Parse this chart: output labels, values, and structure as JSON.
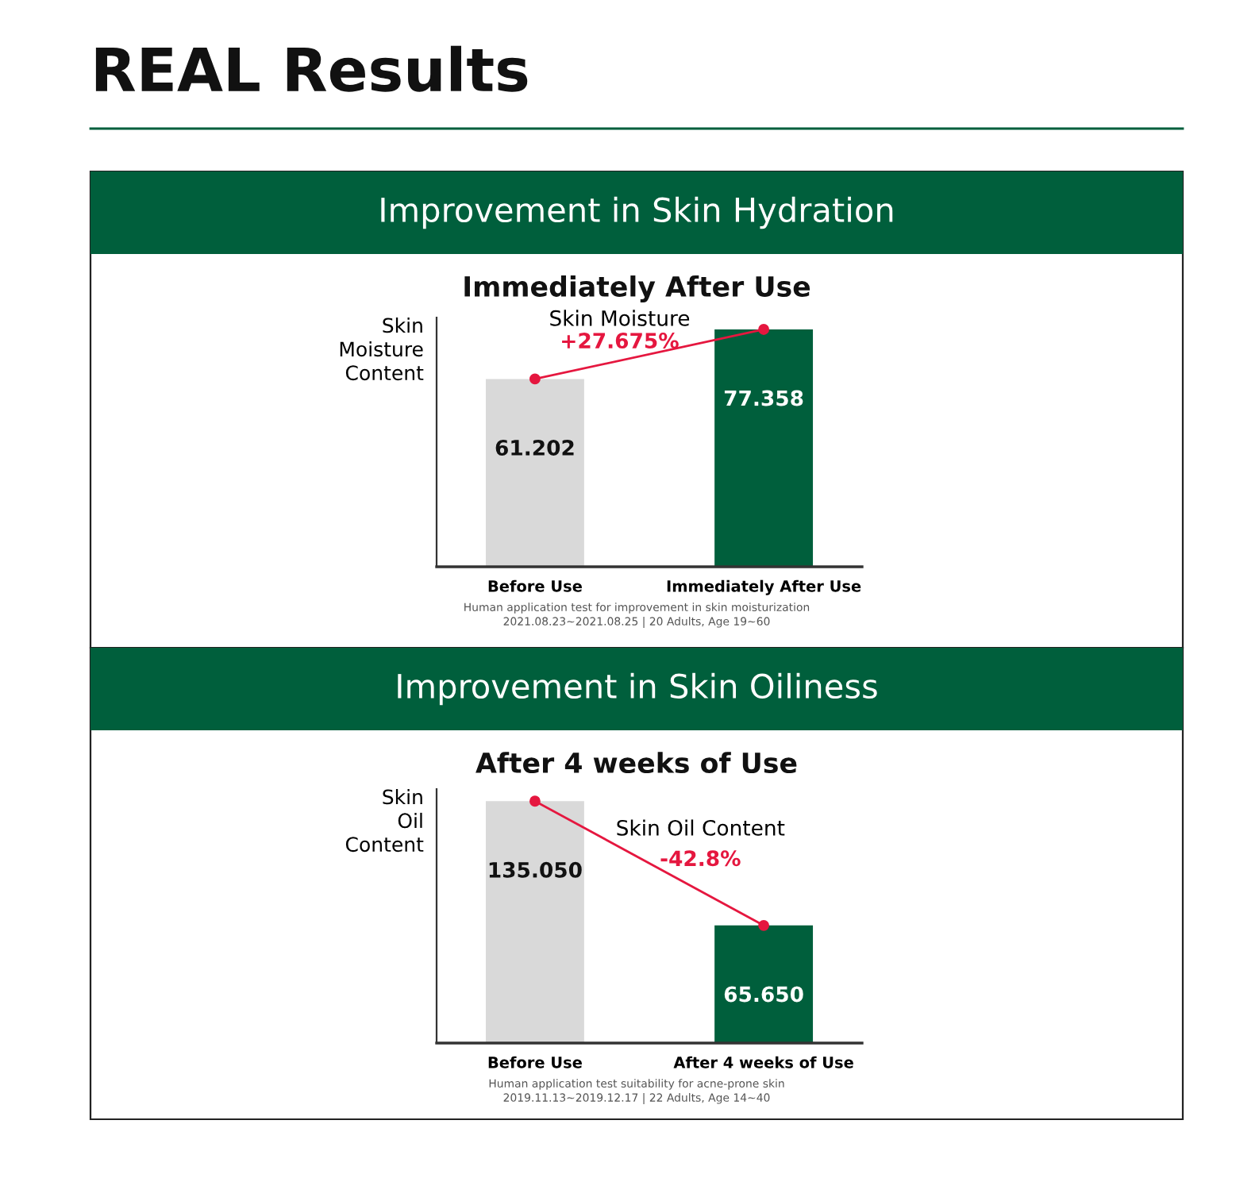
{
  "chart_data": [
    {
      "type": "bar",
      "title": "Improvement in Skin Hydration",
      "subtitle": "Immediately After Use",
      "ylabel": "Skin\nMoisture\nContent",
      "categories": [
        "Before Use",
        "Immediately After Use"
      ],
      "series": [
        {
          "colors": [
            "#d9d9d9",
            "#005f3c"
          ],
          "values": [
            61.202,
            77.358
          ],
          "value_labels": [
            "61.202",
            "77.358"
          ]
        },
        {
          "type": "line",
          "color": "#e5173f",
          "values": [
            61.202,
            77.358
          ],
          "marker": "circle"
        }
      ],
      "annotations": [
        "REAL Results",
        "Skin Moisture",
        "+27.675%",
        "Human application test for improvement in skin moisturization",
        "2021.08.23~2021.08.25 | 20 Adults, Age 19~60"
      ]
    },
    {
      "type": "bar",
      "title": "Improvement in Skin Oiliness",
      "subtitle": "After 4 weeks of Use",
      "ylabel": "Skin\nOil\nContent",
      "categories": [
        "Before Use",
        "After 4 weeks of Use"
      ],
      "series": [
        {
          "colors": [
            "#d9d9d9",
            "#005f3c"
          ],
          "values": [
            135.05,
            65.65
          ],
          "value_labels": [
            "135.050",
            "65.650"
          ]
        },
        {
          "type": "line",
          "color": "#e5173f",
          "values": [
            135.05,
            65.65
          ],
          "marker": "circle"
        }
      ],
      "annotations": [
        "Skin Oil Content",
        "-42.8%",
        "Human application test suitability for acne-prone skin",
        "2019.11.13~2019.12.17 | 22 Adults, Age 14~40"
      ]
    }
  ]
}
